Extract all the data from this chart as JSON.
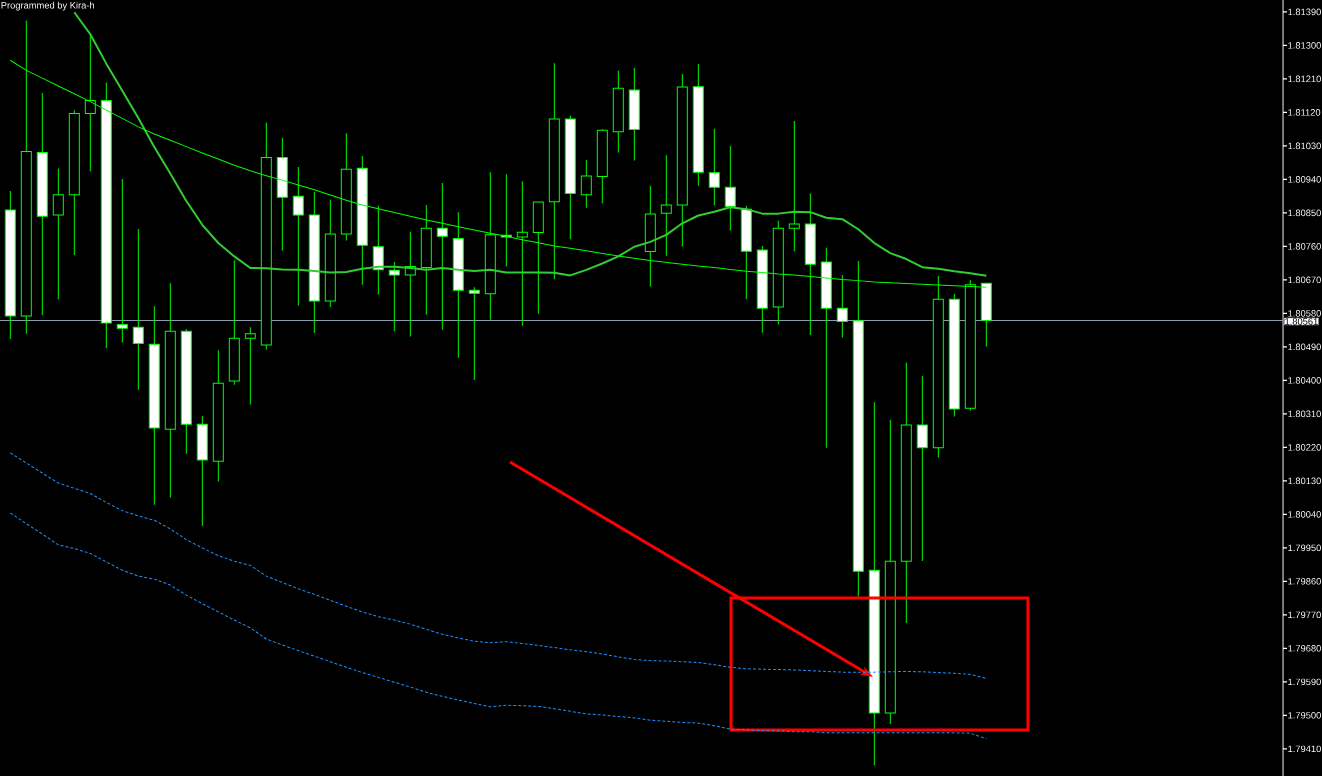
{
  "chart_data": {
    "type": "candlestick",
    "categories": [
      null,
      null,
      null,
      null,
      null,
      null,
      null,
      null,
      null,
      null,
      null,
      null,
      null,
      null,
      null,
      null,
      null,
      null,
      null,
      null,
      null,
      null,
      null,
      null,
      null,
      null,
      null,
      null,
      null,
      null,
      null,
      null,
      null,
      null,
      null,
      null,
      null,
      null,
      null,
      null,
      null,
      null,
      null,
      null,
      null,
      null,
      null,
      null,
      null,
      null,
      null,
      null,
      null,
      null,
      null,
      null,
      null,
      null,
      null,
      null,
      null,
      null
    ],
    "ohlc": [
      [
        1.80858,
        1.80909,
        1.80511,
        1.80573
      ],
      [
        1.80573,
        1.81367,
        1.80525,
        1.81015
      ],
      [
        1.81012,
        1.81172,
        1.80575,
        1.80841
      ],
      [
        1.80844,
        1.80969,
        1.80617,
        1.80899
      ],
      [
        1.80899,
        1.81126,
        1.80737,
        1.81117
      ],
      [
        1.81117,
        1.8133,
        1.80961,
        1.81152
      ],
      [
        1.81152,
        1.812,
        1.80486,
        1.80554
      ],
      [
        1.8055,
        1.80941,
        1.80502,
        1.8054
      ],
      [
        1.80543,
        1.80807,
        1.80375,
        1.80499
      ],
      [
        1.80497,
        1.80599,
        1.80066,
        1.80272
      ],
      [
        1.80269,
        1.80661,
        1.80085,
        1.80532
      ],
      [
        1.80532,
        1.80538,
        1.80203,
        1.80282
      ],
      [
        1.80282,
        1.80304,
        1.80009,
        1.80186
      ],
      [
        1.80183,
        1.80481,
        1.80128,
        1.80392
      ],
      [
        1.80398,
        1.80723,
        1.80388,
        1.80513
      ],
      [
        1.80513,
        1.80543,
        1.80335,
        1.80525
      ],
      [
        1.80495,
        1.81092,
        1.80483,
        1.80999
      ],
      [
        1.80999,
        1.81052,
        1.80748,
        1.80892
      ],
      [
        1.80895,
        1.80973,
        1.80601,
        1.80844
      ],
      [
        1.80844,
        1.80906,
        1.80527,
        1.80613
      ],
      [
        1.80613,
        1.80885,
        1.80597,
        1.80793
      ],
      [
        1.80793,
        1.81064,
        1.80776,
        1.80967
      ],
      [
        1.8097,
        1.81003,
        1.80657,
        1.80763
      ],
      [
        1.80759,
        1.80869,
        1.8063,
        1.80697
      ],
      [
        1.80696,
        1.80718,
        1.80531,
        1.80683
      ],
      [
        1.80683,
        1.80799,
        1.80518,
        1.80706
      ],
      [
        1.80703,
        1.80871,
        1.80576,
        1.80809
      ],
      [
        1.80809,
        1.8093,
        1.80536,
        1.80787
      ],
      [
        1.80781,
        1.80852,
        1.80461,
        1.80642
      ],
      [
        1.80642,
        1.8065,
        1.80401,
        1.80634
      ],
      [
        1.80633,
        1.80959,
        1.80563,
        1.80791
      ],
      [
        1.8079,
        1.80954,
        1.80706,
        1.80785
      ],
      [
        1.80785,
        1.80935,
        1.80547,
        1.80798
      ],
      [
        1.80797,
        1.80879,
        1.80579,
        1.80879
      ],
      [
        1.8088,
        1.81252,
        1.80672,
        1.81102
      ],
      [
        1.81102,
        1.81111,
        1.80779,
        1.80902
      ],
      [
        1.80899,
        1.80992,
        1.80864,
        1.80949
      ],
      [
        1.80948,
        1.81075,
        1.80875,
        1.81072
      ],
      [
        1.81068,
        1.81232,
        1.81012,
        1.81185
      ],
      [
        1.8118,
        1.8124,
        1.80991,
        1.81074
      ],
      [
        1.80746,
        1.80923,
        1.80652,
        1.80847
      ],
      [
        1.80849,
        1.81005,
        1.80735,
        1.80871
      ],
      [
        1.80871,
        1.81223,
        1.80759,
        1.81188
      ],
      [
        1.81189,
        1.8125,
        1.80923,
        1.80959
      ],
      [
        1.80958,
        1.81076,
        1.8087,
        1.80919
      ],
      [
        1.80919,
        1.8103,
        1.80802,
        1.80867
      ],
      [
        1.8086,
        1.80869,
        1.80618,
        1.80747
      ],
      [
        1.8075,
        1.80761,
        1.80528,
        1.80594
      ],
      [
        1.80597,
        1.80829,
        1.8055,
        1.80809
      ],
      [
        1.80809,
        1.81097,
        1.80746,
        1.8082
      ],
      [
        1.8082,
        1.80903,
        1.80522,
        1.80712
      ],
      [
        1.80718,
        1.80756,
        1.80219,
        1.80594
      ],
      [
        1.80594,
        1.80683,
        1.80515,
        1.80558
      ],
      [
        1.8056,
        1.80721,
        1.79819,
        1.79887
      ],
      [
        1.7989,
        1.80341,
        1.79365,
        1.79506
      ],
      [
        1.79506,
        1.80294,
        1.79477,
        1.79914
      ],
      [
        1.79914,
        1.80447,
        1.79748,
        1.8028
      ],
      [
        1.8028,
        1.80412,
        1.79915,
        1.80219
      ],
      [
        1.80219,
        1.80681,
        1.80193,
        1.80618
      ],
      [
        1.80618,
        1.80632,
        1.80303,
        1.80323
      ],
      [
        1.80325,
        1.8067,
        1.80319,
        1.80657
      ],
      [
        1.80661,
        1.80661,
        1.80491,
        1.80561
      ]
    ],
    "series": [
      {
        "type": "line",
        "color": "#32cd32",
        "values": [
          null,
          null,
          null,
          null,
          1.81389,
          1.8133,
          1.81251,
          1.81178,
          1.81105,
          1.81027,
          1.80956,
          1.80882,
          1.80818,
          1.80769,
          1.80733,
          1.80702,
          1.80701,
          1.80698,
          1.80697,
          1.80694,
          1.8069,
          1.80691,
          1.807,
          1.80705,
          1.80705,
          1.80702,
          1.80697,
          1.80702,
          1.80697,
          1.80694,
          1.80697,
          1.8069,
          1.8069,
          1.8069,
          1.80689,
          1.80682,
          1.80697,
          1.80714,
          1.80733,
          1.80759,
          1.80772,
          1.80791,
          1.80822,
          1.80843,
          1.80853,
          1.80865,
          1.8086,
          1.80848,
          1.80848,
          1.80853,
          1.80852,
          1.80837,
          1.80833,
          1.80806,
          1.80769,
          1.80742,
          1.80726,
          1.80704,
          1.807,
          1.80693,
          1.80688,
          1.80681
        ]
      },
      {
        "type": "line",
        "color": "#00ff00",
        "values": [
          1.8126,
          1.81233,
          1.81212,
          1.81191,
          1.8117,
          1.81149,
          1.81126,
          1.81104,
          1.81081,
          1.81062,
          1.81045,
          1.81028,
          1.81011,
          1.80995,
          1.80978,
          1.80963,
          1.8095,
          1.80938,
          1.80925,
          1.80912,
          1.80898,
          1.80884,
          1.80871,
          1.80861,
          1.80851,
          1.80841,
          1.80831,
          1.80822,
          1.80813,
          1.80804,
          1.80795,
          1.80787,
          1.80778,
          1.8077,
          1.80761,
          1.80755,
          1.80748,
          1.80741,
          1.80734,
          1.80728,
          1.80722,
          1.80717,
          1.80712,
          1.80707,
          1.80703,
          1.80698,
          1.80693,
          1.8069,
          1.80686,
          1.80683,
          1.80679,
          1.80675,
          1.80671,
          1.80668,
          1.80664,
          1.80662,
          1.8066,
          1.80658,
          1.80656,
          1.80654,
          1.80652,
          1.8065
        ]
      },
      {
        "type": "line",
        "color": "#1e90ff",
        "line_style": "dashed",
        "values": [
          1.80205,
          1.80178,
          1.80151,
          1.80124,
          1.8011,
          1.80096,
          1.80072,
          1.8005,
          1.80036,
          1.80024,
          1.80001,
          1.79972,
          1.7995,
          1.79929,
          1.79914,
          1.79903,
          1.79874,
          1.79857,
          1.7984,
          1.79825,
          1.79809,
          1.79793,
          1.79778,
          1.79765,
          1.79756,
          1.79745,
          1.79731,
          1.79718,
          1.79708,
          1.79699,
          1.79695,
          1.79698,
          1.79693,
          1.79688,
          1.79682,
          1.79676,
          1.79671,
          1.79665,
          1.79657,
          1.7965,
          1.79647,
          1.79646,
          1.79644,
          1.79642,
          1.79636,
          1.79629,
          1.79625,
          1.79624,
          1.79623,
          1.79622,
          1.7962,
          1.79618,
          1.79616,
          1.79616,
          1.79616,
          1.79617,
          1.79618,
          1.79617,
          1.79615,
          1.79613,
          1.7961,
          1.79599
        ]
      },
      {
        "type": "line",
        "color": "#1e90ff",
        "line_style": "dashed",
        "values": [
          1.80044,
          1.80015,
          1.79987,
          1.79958,
          1.79948,
          1.79935,
          1.79912,
          1.7989,
          1.79874,
          1.79866,
          1.7985,
          1.79823,
          1.798,
          1.79778,
          1.79756,
          1.79735,
          1.79705,
          1.79689,
          1.79674,
          1.79659,
          1.79644,
          1.79629,
          1.79615,
          1.79602,
          1.79589,
          1.79576,
          1.79562,
          1.79551,
          1.79541,
          1.79532,
          1.79523,
          1.79527,
          1.79526,
          1.79524,
          1.79518,
          1.79511,
          1.79504,
          1.79501,
          1.79497,
          1.79493,
          1.79487,
          1.79484,
          1.79481,
          1.79479,
          1.79472,
          1.79463,
          1.79461,
          1.79459,
          1.79458,
          1.79456,
          1.79456,
          1.79453,
          1.79453,
          1.79453,
          1.79453,
          1.79453,
          1.79453,
          1.79453,
          1.79453,
          1.79453,
          1.79452,
          1.79437
        ]
      }
    ],
    "ylim": [
      1.79337,
      1.81422
    ],
    "yticks": [
      {
        "value": 1.8139,
        "label": "1.81390"
      },
      {
        "value": 1.813,
        "label": "1.81300"
      },
      {
        "value": 1.8121,
        "label": "1.81210"
      },
      {
        "value": 1.8112,
        "label": "1.81120"
      },
      {
        "value": 1.8103,
        "label": "1.81030"
      },
      {
        "value": 1.8094,
        "label": "1.80940"
      },
      {
        "value": 1.8085,
        "label": "1.80850"
      },
      {
        "value": 1.8076,
        "label": "1.80760"
      },
      {
        "value": 1.8067,
        "label": "1.80670"
      },
      {
        "value": 1.8058,
        "label": "1.80580"
      },
      {
        "value": 1.8049,
        "label": "1.80490"
      },
      {
        "value": 1.804,
        "label": "1.80400"
      },
      {
        "value": 1.8031,
        "label": "1.80310"
      },
      {
        "value": 1.8022,
        "label": "1.80220"
      },
      {
        "value": 1.8013,
        "label": "1.80130"
      },
      {
        "value": 1.8004,
        "label": "1.80040"
      },
      {
        "value": 1.7995,
        "label": "1.79950"
      },
      {
        "value": 1.7986,
        "label": "1.79860"
      },
      {
        "value": 1.7977,
        "label": "1.79770"
      },
      {
        "value": 1.7968,
        "label": "1.79680"
      },
      {
        "value": 1.7959,
        "label": "1.79590"
      },
      {
        "value": 1.795,
        "label": "1.79500"
      },
      {
        "value": 1.7941,
        "label": "1.79410"
      }
    ],
    "tick_labels": "y",
    "ref_lines": [
      {
        "axis": "y",
        "value": 1.80561,
        "label": "1.80561",
        "color": "#8c9bb0"
      }
    ],
    "annotations": [
      "Programmed by Kira-h"
    ]
  }
}
